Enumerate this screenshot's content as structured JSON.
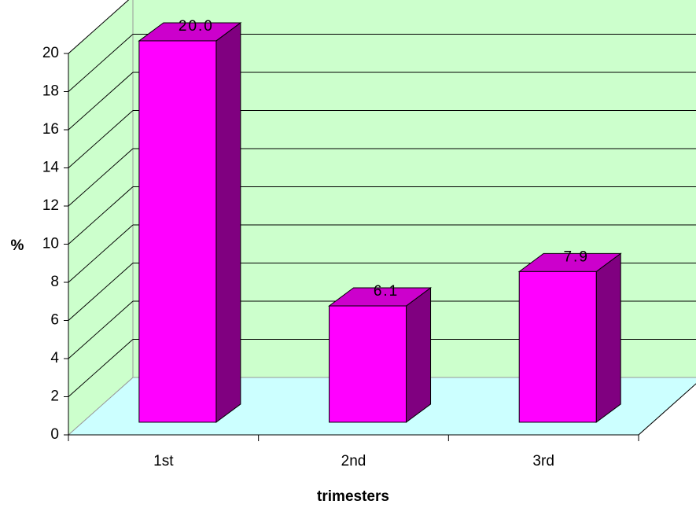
{
  "chart_data": {
    "type": "bar",
    "xlabel": "trimesters",
    "ylabel": "%",
    "categories": [
      "1st",
      "2nd",
      "3rd"
    ],
    "values": [
      20,
      6.1,
      7.9
    ],
    "value_labels": [
      "20.0",
      "6.1",
      "7.9"
    ],
    "color": "#ff00ff",
    "ylim": [
      0,
      20
    ],
    "yticks": [
      0,
      2,
      4,
      6,
      8,
      10,
      12,
      14,
      16,
      18,
      20
    ],
    "grid": true
  }
}
